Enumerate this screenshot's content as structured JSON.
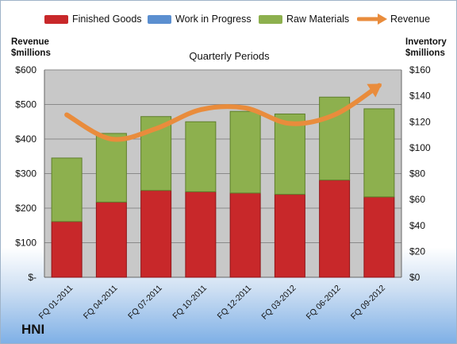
{
  "company": "HNI",
  "colors": {
    "finished_goods": "#c8282a",
    "work_in_progress": "#5b8fd0",
    "raw_materials": "#8db04e",
    "revenue": "#e98c3c",
    "plot_background": "#c8c8c8"
  },
  "chart_data": {
    "type": "bar",
    "stacked": true,
    "title": "Quarterly Periods",
    "legend": [
      {
        "label": "Finished Goods"
      },
      {
        "label": "Work in Progress"
      },
      {
        "label": "Raw Materials"
      },
      {
        "label": "Revenue"
      }
    ],
    "categories": [
      "FQ 01-2011",
      "FQ 04-2011",
      "FQ 07-2011",
      "FQ 10-2011",
      "FQ 12-2011",
      "FQ 03-2012",
      "FQ 06-2012",
      "FQ 09-2012"
    ],
    "series": [
      {
        "name": "Finished Goods",
        "axis": "right",
        "values": [
          43,
          58,
          67,
          66,
          65,
          64,
          75,
          62
        ]
      },
      {
        "name": "Work in Progress",
        "axis": "right",
        "values": [
          0,
          0,
          0,
          0,
          0,
          0,
          0,
          0
        ]
      },
      {
        "name": "Raw Materials",
        "axis": "right",
        "values": [
          49,
          53,
          57,
          54,
          63,
          62,
          64,
          68
        ]
      },
      {
        "name": "Revenue",
        "axis": "left",
        "type": "line",
        "values": [
          470,
          400,
          430,
          485,
          490,
          445,
          470,
          555
        ]
      }
    ],
    "y_left": {
      "title_line1": "Revenue",
      "title_line2": "$millions",
      "ylim": [
        0,
        600
      ],
      "ticks": [
        0,
        100,
        200,
        300,
        400,
        500,
        600
      ],
      "tick_labels": [
        "$-",
        "$100",
        "$200",
        "$300",
        "$400",
        "$500",
        "$600"
      ]
    },
    "y_right": {
      "title_line1": "Inventory",
      "title_line2": "$millions",
      "ylim": [
        0,
        160
      ],
      "ticks": [
        0,
        20,
        40,
        60,
        80,
        100,
        120,
        140,
        160
      ],
      "tick_labels": [
        "$0",
        "$20",
        "$40",
        "$60",
        "$80",
        "$100",
        "$120",
        "$140",
        "$160"
      ]
    },
    "grid": true,
    "legend_position": "top"
  }
}
